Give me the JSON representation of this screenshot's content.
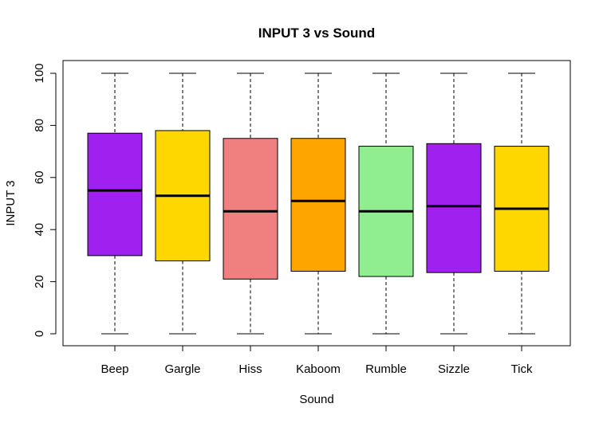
{
  "chart_data": {
    "type": "boxplot",
    "title": "INPUT 3 vs Sound",
    "xlabel": "Sound",
    "ylabel": "INPUT 3",
    "ylim": [
      -4,
      104
    ],
    "yticks": [
      0,
      20,
      40,
      60,
      80,
      100
    ],
    "categories": [
      "Beep",
      "Gargle",
      "Hiss",
      "Kaboom",
      "Rumble",
      "Sizzle",
      "Tick"
    ],
    "boxes": [
      {
        "min": 0,
        "q1": 30,
        "median": 55,
        "q3": 77,
        "max": 100,
        "color": "#A020F0"
      },
      {
        "min": 0,
        "q1": 28,
        "median": 53,
        "q3": 78,
        "max": 100,
        "color": "#FFD700"
      },
      {
        "min": 0,
        "q1": 21,
        "median": 47,
        "q3": 75,
        "max": 100,
        "color": "#F08080"
      },
      {
        "min": 0,
        "q1": 24,
        "median": 51,
        "q3": 75,
        "max": 100,
        "color": "#FFA500"
      },
      {
        "min": 0,
        "q1": 22,
        "median": 47,
        "q3": 72,
        "max": 100,
        "color": "#90EE90"
      },
      {
        "min": 0,
        "q1": 23.5,
        "median": 49,
        "q3": 73,
        "max": 100,
        "color": "#A020F0"
      },
      {
        "min": 0,
        "q1": 24,
        "median": 48,
        "q3": 72,
        "max": 100,
        "color": "#FFD700"
      }
    ]
  }
}
